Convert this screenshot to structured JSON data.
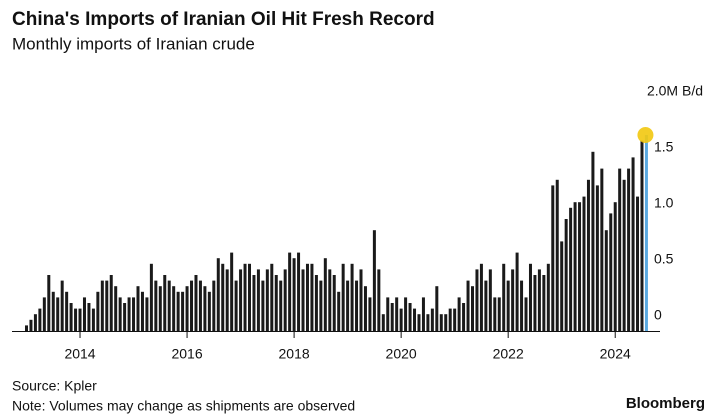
{
  "chart_data": {
    "type": "bar",
    "title": "China's Imports of Iranian Oil Hit Fresh Record",
    "subtitle": "Monthly imports of Iranian crude",
    "source": "Source: Kpler",
    "note": "Note: Volumes may change as shipments are observed",
    "brand": "Bloomberg",
    "categories": [
      null,
      null,
      null,
      null,
      null,
      null,
      null,
      null,
      null,
      null,
      null,
      null,
      "2014",
      null,
      null,
      null,
      null,
      null,
      null,
      null,
      null,
      null,
      null,
      null,
      null,
      null,
      null,
      null,
      null,
      null,
      null,
      null,
      null,
      null,
      null,
      null,
      "2016",
      null,
      null,
      null,
      null,
      null,
      null,
      null,
      null,
      null,
      null,
      null,
      null,
      null,
      null,
      null,
      null,
      null,
      null,
      null,
      null,
      null,
      null,
      null,
      "2018",
      null,
      null,
      null,
      null,
      null,
      null,
      null,
      null,
      null,
      null,
      null,
      null,
      null,
      null,
      null,
      null,
      null,
      null,
      null,
      null,
      null,
      null,
      null,
      "2020",
      null,
      null,
      null,
      null,
      null,
      null,
      null,
      null,
      null,
      null,
      null,
      null,
      null,
      null,
      null,
      null,
      null,
      null,
      null,
      null,
      null,
      null,
      null,
      "2022",
      null,
      null,
      null,
      null,
      null,
      null,
      null,
      null,
      null,
      null,
      null,
      null,
      null,
      null,
      null,
      null,
      null,
      null,
      null,
      null,
      null,
      null,
      null,
      "2024",
      null,
      null,
      null,
      null,
      null,
      null,
      null
    ],
    "values": [
      0.05,
      0.1,
      0.15,
      0.2,
      0.3,
      0.5,
      0.35,
      0.3,
      0.45,
      0.35,
      0.25,
      0.2,
      0.2,
      0.3,
      0.25,
      0.2,
      0.35,
      0.45,
      0.45,
      0.5,
      0.4,
      0.3,
      0.25,
      0.3,
      0.3,
      0.4,
      0.35,
      0.3,
      0.6,
      0.45,
      0.4,
      0.5,
      0.45,
      0.4,
      0.35,
      0.35,
      0.4,
      0.45,
      0.5,
      0.45,
      0.4,
      0.35,
      0.45,
      0.65,
      0.6,
      0.55,
      0.7,
      0.45,
      0.55,
      0.6,
      0.6,
      0.5,
      0.55,
      0.45,
      0.55,
      0.6,
      0.5,
      0.45,
      0.55,
      0.7,
      0.65,
      0.7,
      0.55,
      0.6,
      0.6,
      0.5,
      0.45,
      0.65,
      0.55,
      0.5,
      0.35,
      0.6,
      0.45,
      0.6,
      0.45,
      0.55,
      0.4,
      0.3,
      0.9,
      0.55,
      0.15,
      0.3,
      0.25,
      0.3,
      0.2,
      0.3,
      0.25,
      0.2,
      0.15,
      0.3,
      0.15,
      0.2,
      0.4,
      0.15,
      0.15,
      0.2,
      0.2,
      0.3,
      0.25,
      0.45,
      0.4,
      0.55,
      0.6,
      0.45,
      0.55,
      0.3,
      0.3,
      0.6,
      0.45,
      0.55,
      0.7,
      0.45,
      0.3,
      0.6,
      0.5,
      0.55,
      0.5,
      0.6,
      1.3,
      1.35,
      0.8,
      1.0,
      1.1,
      1.15,
      1.15,
      1.2,
      1.35,
      1.6,
      1.3,
      1.45,
      0.9,
      1.05,
      1.15,
      1.45,
      1.35,
      1.45,
      1.55,
      1.2,
      1.7,
      1.75
    ],
    "color": "#1a1a1a",
    "highlight_color": "#5aa9e0",
    "marker_color": "#f2c80f",
    "ylim": [
      0,
      2
    ],
    "yticks": [
      0,
      0.5,
      {
        "value": 1,
        "label": "1.0"
      },
      1.5,
      {
        "value": 2,
        "label": "2.0M B/d"
      }
    ],
    "grid": false
  }
}
